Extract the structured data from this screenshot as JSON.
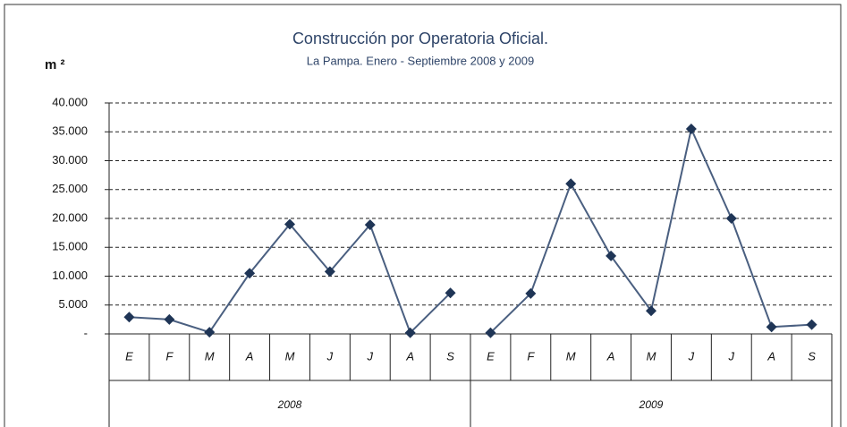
{
  "chart_data": {
    "type": "line",
    "title": "Construcción por Operatoria Oficial.",
    "subtitle": "La Pampa. Enero - Septiembre 2008 y 2009",
    "y_label": "m ²",
    "categories": [
      "E",
      "F",
      "M",
      "A",
      "M",
      "J",
      "J",
      "A",
      "S",
      "E",
      "F",
      "M",
      "A",
      "M",
      "J",
      "J",
      "A",
      "S"
    ],
    "groups": [
      "2008",
      "2009"
    ],
    "series": [
      {
        "color": "#4a5f80",
        "marker_color": "#1f3556",
        "values": [
          2900,
          2500,
          300,
          10500,
          19000,
          10800,
          18900,
          200,
          7100,
          null,
          null,
          null,
          null,
          null,
          null,
          null,
          null,
          null
        ]
      },
      {
        "color": "#4a5f80",
        "marker_color": "#1f3556",
        "values": [
          null,
          null,
          null,
          null,
          null,
          null,
          null,
          null,
          null,
          200,
          7000,
          26000,
          13500,
          4000,
          35500,
          20000,
          1200,
          1600
        ]
      }
    ],
    "ylim": [
      0,
      40000
    ],
    "yticks": [
      {
        "value": 0,
        "label": "-"
      },
      {
        "value": 5000,
        "label": "5.000"
      },
      {
        "value": 10000,
        "label": "10.000"
      },
      {
        "value": 15000,
        "label": "15.000"
      },
      {
        "value": 20000,
        "label": "20.000"
      },
      {
        "value": 25000,
        "label": "25.000"
      },
      {
        "value": 30000,
        "label": "30.000"
      },
      {
        "value": 35000,
        "label": "35.000"
      },
      {
        "value": 40000,
        "label": "40.000"
      }
    ],
    "grid": true
  }
}
